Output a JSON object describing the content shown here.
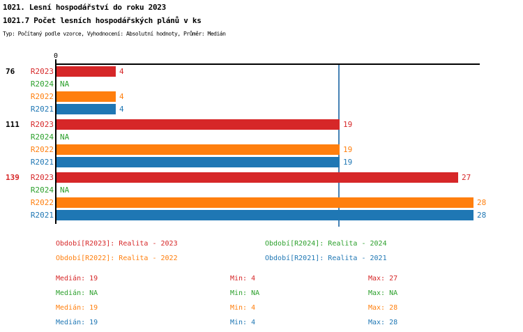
{
  "header": {
    "title": "1021. Lesní hospodářství do roku 2023",
    "subtitle": "1021.7 Počet lesních hospodářských plánů v ks",
    "meta": "Typ: Počítaný podle vzorce, Vyhodnocení: Absolutní hodnoty, Průměr: Medián"
  },
  "colors": {
    "r2023": "#d62728",
    "r2024": "#2ca02c",
    "r2022": "#ff7f0e",
    "r2021": "#1f77b4",
    "axis": "#000000",
    "median_line": "#4682b4",
    "highlight_group": "#d62728",
    "group_label": "#000000"
  },
  "chart_data": {
    "type": "bar",
    "orientation": "horizontal",
    "title": "1021.7 Počet lesních hospodářských plánů v ks",
    "value_axis": {
      "origin_label": "0",
      "min": 0,
      "max": 28.4,
      "gridlines": false
    },
    "median_reference_line": 19,
    "series_order": [
      "R2023",
      "R2024",
      "R2022",
      "R2021"
    ],
    "groups": [
      {
        "label": "76",
        "highlighted": false,
        "values": {
          "R2023": 4,
          "R2024": "NA",
          "R2022": 4,
          "R2021": 4
        }
      },
      {
        "label": "111",
        "highlighted": false,
        "values": {
          "R2023": 19,
          "R2024": "NA",
          "R2022": 19,
          "R2021": 19
        }
      },
      {
        "label": "139",
        "highlighted": true,
        "values": {
          "R2023": 27,
          "R2024": "NA",
          "R2022": 28,
          "R2021": 28
        }
      }
    ]
  },
  "legend": [
    {
      "label": "Období[R2023]: Realita - 2023",
      "series": "R2023",
      "col": 0,
      "row": 0
    },
    {
      "label": "Období[R2024]: Realita - 2024",
      "series": "R2024",
      "col": 1,
      "row": 0
    },
    {
      "label": "Období[R2022]: Realita - 2022",
      "series": "R2022",
      "col": 0,
      "row": 1
    },
    {
      "label": "Období[R2021]: Realita - 2021",
      "series": "R2021",
      "col": 1,
      "row": 1
    }
  ],
  "stats_labels": {
    "median": "Medián",
    "min": "Min",
    "max": "Max"
  },
  "stats": [
    {
      "series": "R2023",
      "median": "19",
      "min": "4",
      "max": "27"
    },
    {
      "series": "R2024",
      "median": "NA",
      "min": "NA",
      "max": "NA"
    },
    {
      "series": "R2022",
      "median": "19",
      "min": "4",
      "max": "28"
    },
    {
      "series": "R2021",
      "median": "19",
      "min": "4",
      "max": "28"
    }
  ]
}
